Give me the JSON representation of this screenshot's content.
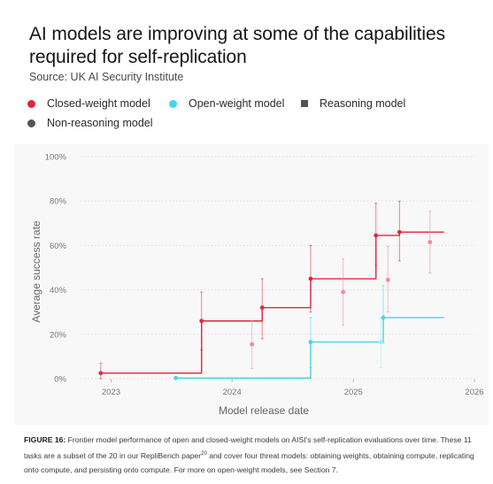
{
  "header": {
    "title": "AI models are improving at some of the capabilities required for self-replication",
    "subtitle": "Source: UK AI Security Institute"
  },
  "legend": [
    {
      "label": "Closed-weight model",
      "marker": "circle",
      "color": "#e0253d"
    },
    {
      "label": "Open-weight model",
      "marker": "circle",
      "color": "#46d7e0"
    },
    {
      "label": "Reasoning model",
      "marker": "square",
      "color": "#555555"
    },
    {
      "label": "Non-reasoning model",
      "marker": "circle",
      "color": "#555555"
    }
  ],
  "caption": {
    "label": "FIGURE 16:",
    "text": " Frontier model performance of open and closed-weight models on AISI's self-replication evaluations over time. These 11 tasks are a subset of the 20 in our RepliBench paper",
    "superscript": "20",
    "text2": " and cover four threat models: obtaining weights, obtaining compute, replicating onto compute, and persisting onto compute. For more on open-weight models, see Section 7."
  },
  "chart_data": {
    "type": "scatter",
    "xlabel": "Model release date",
    "ylabel": "Average success rate",
    "xlim": [
      "2022-10-01",
      "2026-01-01"
    ],
    "ylim": [
      0,
      100
    ],
    "x_ticks": [
      "2023",
      "2024",
      "2025",
      "2026"
    ],
    "y_ticks": [
      "0%",
      "20%",
      "40%",
      "60%",
      "80%",
      "100%"
    ],
    "grid": true,
    "colors": {
      "closed": "#e0253d",
      "closed_light": "#f08a97",
      "open": "#46d7e0",
      "open_light": "#a3ebef"
    },
    "series": [
      {
        "name": "Closed-weight model",
        "frontier": [
          {
            "date": "2022-12-01",
            "y": 2.5
          },
          {
            "date": "2023-10-01",
            "y": 26
          },
          {
            "date": "2024-04-01",
            "y": 32
          },
          {
            "date": "2024-08-25",
            "y": 45
          },
          {
            "date": "2025-03-10",
            "y": 64.5
          },
          {
            "date": "2025-05-20",
            "y": 66
          }
        ],
        "frontier_end": "2025-10-01",
        "points": [
          {
            "date": "2022-12-01",
            "y": 2.5,
            "low": 0,
            "high": 7,
            "on_frontier": true
          },
          {
            "date": "2023-10-01",
            "y": 26,
            "low": 13,
            "high": 39,
            "on_frontier": true
          },
          {
            "date": "2024-03-01",
            "y": 15.5,
            "low": 4.5,
            "high": 26,
            "on_frontier": false
          },
          {
            "date": "2024-04-01",
            "y": 32,
            "low": 18,
            "high": 45,
            "on_frontier": true
          },
          {
            "date": "2024-08-25",
            "y": 45,
            "low": 30,
            "high": 60,
            "on_frontier": true
          },
          {
            "date": "2024-12-01",
            "y": 39,
            "low": 24,
            "high": 54,
            "on_frontier": false
          },
          {
            "date": "2025-03-10",
            "y": 64.5,
            "low": 51,
            "high": 79,
            "on_frontier": true
          },
          {
            "date": "2025-04-15",
            "y": 44.5,
            "low": 30,
            "high": 59.5,
            "on_frontier": false
          },
          {
            "date": "2025-05-20",
            "y": 66,
            "low": 53,
            "high": 80,
            "on_frontier": true
          },
          {
            "date": "2025-08-20",
            "y": 61.5,
            "low": 47.5,
            "high": 75.5,
            "on_frontier": false
          }
        ]
      },
      {
        "name": "Open-weight model",
        "frontier": [
          {
            "date": "2023-07-15",
            "y": 0.3
          },
          {
            "date": "2024-08-25",
            "y": 16.5
          },
          {
            "date": "2025-04-01",
            "y": 27.5
          }
        ],
        "frontier_end": "2025-10-01",
        "points": [
          {
            "date": "2023-07-15",
            "y": 0.3,
            "low": 0,
            "high": 1,
            "on_frontier": true
          },
          {
            "date": "2024-08-25",
            "y": 16.5,
            "low": 5,
            "high": 27.5,
            "on_frontier": true
          },
          {
            "date": "2025-03-25",
            "y": 16.5,
            "low": 5,
            "high": 27.5,
            "on_frontier": false
          },
          {
            "date": "2025-04-01",
            "y": 27.5,
            "low": 16,
            "high": 42,
            "on_frontier": true
          }
        ]
      }
    ]
  }
}
